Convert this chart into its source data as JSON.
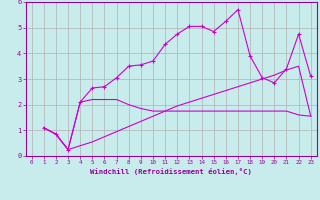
{
  "title": "",
  "xlabel": "Windchill (Refroidissement éolien,°C)",
  "ylabel": "",
  "background_color": "#c8ecec",
  "grid_color": "#b0b0b0",
  "line_color": "#cc00cc",
  "xlim": [
    -0.5,
    23.5
  ],
  "ylim": [
    0,
    6
  ],
  "xticks": [
    0,
    1,
    2,
    3,
    4,
    5,
    6,
    7,
    8,
    9,
    10,
    11,
    12,
    13,
    14,
    15,
    16,
    17,
    18,
    19,
    20,
    21,
    22,
    23
  ],
  "yticks": [
    0,
    1,
    2,
    3,
    4,
    5,
    6
  ],
  "line1_x": [
    1,
    2,
    3,
    4,
    5,
    6,
    7,
    8,
    9,
    10,
    11,
    12,
    13,
    14,
    15,
    16,
    17,
    18,
    19,
    20,
    21,
    22,
    23
  ],
  "line1_y": [
    1.1,
    0.85,
    0.25,
    2.1,
    2.65,
    2.7,
    3.05,
    3.5,
    3.55,
    3.7,
    4.35,
    4.75,
    5.05,
    5.05,
    4.85,
    5.25,
    5.7,
    3.9,
    3.05,
    2.85,
    3.4,
    4.75,
    3.1
  ],
  "line2_x": [
    1,
    2,
    3,
    4,
    5,
    6,
    7,
    8,
    9,
    10,
    11,
    12,
    13,
    14,
    15,
    16,
    17,
    18,
    19,
    20,
    21,
    22,
    23
  ],
  "line2_y": [
    1.1,
    0.85,
    0.25,
    2.1,
    2.2,
    2.2,
    2.2,
    2.0,
    1.85,
    1.75,
    1.75,
    1.75,
    1.75,
    1.75,
    1.75,
    1.75,
    1.75,
    1.75,
    1.75,
    1.75,
    1.75,
    1.6,
    1.55
  ],
  "line3_x": [
    1,
    2,
    3,
    4,
    5,
    6,
    7,
    8,
    9,
    10,
    11,
    12,
    13,
    14,
    15,
    16,
    17,
    18,
    19,
    20,
    21,
    22,
    23
  ],
  "line3_y": [
    1.1,
    0.85,
    0.25,
    0.4,
    0.55,
    0.75,
    0.95,
    1.15,
    1.35,
    1.55,
    1.75,
    1.95,
    2.1,
    2.25,
    2.4,
    2.55,
    2.7,
    2.85,
    3.0,
    3.15,
    3.35,
    3.5,
    1.55
  ]
}
